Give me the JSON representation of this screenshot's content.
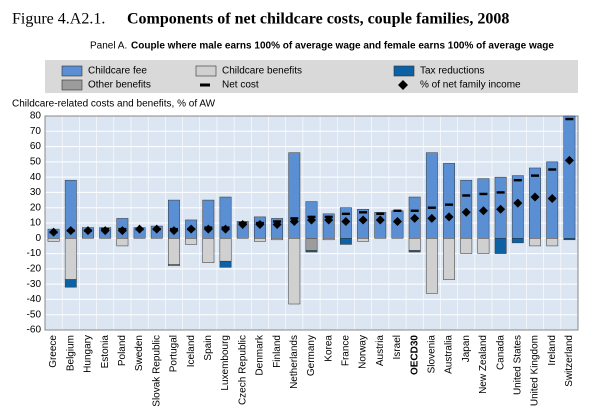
{
  "chart_data": {
    "type": "bar",
    "label": "Figure 4.A2.1.",
    "title": "Components of net childcare costs, couple families, 2008",
    "panel": "Panel A.",
    "subtitle": "Couple where male earns 100% of average wage and female earns 100% of average wage",
    "ylabel": "Childcare-related costs and benefits, % of AW",
    "categories": [
      "Greece",
      "Belgium",
      "Hungary",
      "Estonia",
      "Poland",
      "Sweden",
      "Slovak Republic",
      "Portugal",
      "Iceland",
      "Spain",
      "Luxembourg",
      "Czech Republic",
      "Denmark",
      "Finland",
      "Netherlands",
      "Germany",
      "Korea",
      "France",
      "Norway",
      "Austria",
      "Israel",
      "OECD30",
      "Slovenia",
      "Australia",
      "Japan",
      "New Zealand",
      "Canada",
      "United States",
      "United Kingdom",
      "Ireland",
      "Switzerland"
    ],
    "highlight": 21,
    "series": [
      {
        "name": "Childcare fee",
        "color": "#5b8fd3",
        "values": [
          6,
          38,
          7,
          7,
          13,
          7,
          8,
          25,
          12,
          25,
          27,
          11,
          14,
          13,
          56,
          24,
          16,
          20,
          19,
          17,
          18,
          27,
          56,
          49,
          38,
          39,
          40,
          41,
          46,
          50,
          80
        ]
      },
      {
        "name": "Childcare benefits",
        "color": "#d0d0d0",
        "values": [
          -2,
          -27,
          0,
          0,
          -5,
          0,
          0,
          -17,
          -4,
          -16,
          -15,
          0,
          -2,
          -1,
          -43,
          0,
          -1,
          0,
          -2,
          0,
          0,
          -8,
          -36,
          -27,
          -10,
          -10,
          0,
          0,
          -5,
          -5,
          0
        ]
      },
      {
        "name": "Other benefits",
        "color": "#9c9c9c",
        "values": [
          0,
          0,
          0,
          0,
          0,
          0,
          0,
          -1,
          0,
          0,
          0,
          0,
          0,
          0,
          0,
          -8,
          0,
          0,
          0,
          0,
          0,
          0,
          0,
          0,
          0,
          0,
          0,
          0,
          0,
          0,
          0
        ]
      },
      {
        "name": "Tax reductions",
        "color": "#0b61a4",
        "values": [
          0,
          -5,
          0,
          0,
          0,
          0,
          0,
          0,
          0,
          0,
          -4,
          0,
          0,
          0,
          0,
          -1,
          0,
          -4,
          0,
          0,
          0,
          -1,
          0,
          0,
          0,
          0,
          -10,
          -3,
          0,
          0,
          -1
        ]
      },
      {
        "name": "Net cost",
        "color": "#000000",
        "marker": "dash",
        "values": [
          4,
          5,
          5,
          6,
          6,
          6,
          6,
          6,
          6,
          7,
          7,
          10,
          10,
          11,
          13,
          14,
          14,
          16,
          17,
          16,
          18,
          18,
          20,
          22,
          28,
          29,
          30,
          38,
          41,
          45,
          78
        ]
      },
      {
        "name": "% of net family income",
        "color": "#000000",
        "marker": "diamond",
        "values": [
          4,
          5,
          5,
          5,
          5,
          6,
          6,
          5,
          6,
          6,
          6,
          9,
          9,
          9,
          11,
          12,
          12,
          11,
          12,
          12,
          11,
          13,
          13,
          14,
          17,
          18,
          19,
          23,
          27,
          26,
          51
        ]
      }
    ],
    "ylim": [
      -60,
      80
    ],
    "yticks": [
      -60,
      -50,
      -40,
      -30,
      -20,
      -10,
      0,
      10,
      20,
      30,
      40,
      50,
      60,
      70,
      80
    ],
    "grid": true
  }
}
